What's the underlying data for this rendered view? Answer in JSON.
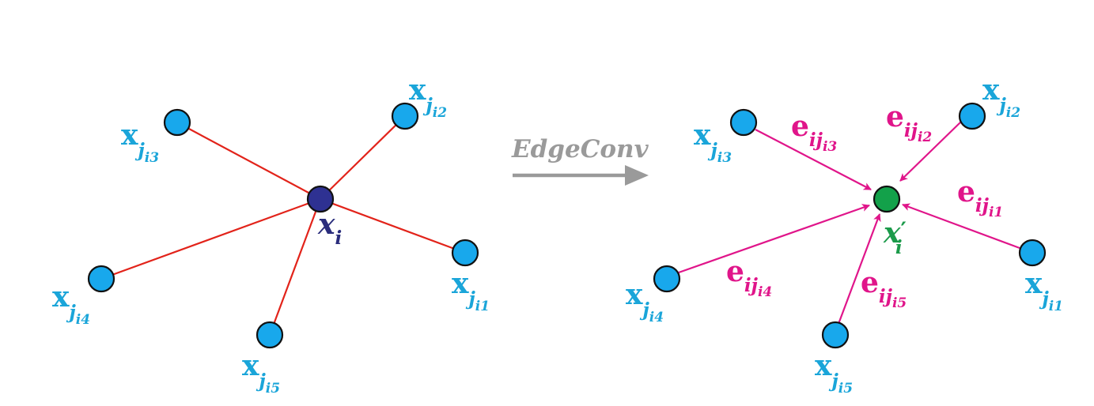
{
  "colors": {
    "neighbor_node": "#18a8ec",
    "center_node": "#2e3192",
    "output_node": "#13a14a",
    "input_edge": "#e2231a",
    "output_edge": "#e0158a",
    "neighbor_label": "#1aa5d9",
    "edge_label": "#e0158a",
    "center_label": "#2a2d7c",
    "output_label": "#1b9a4a",
    "arrow": "#9a9a9a"
  },
  "transform": {
    "label": "EdgeConv"
  },
  "left_graph": {
    "center": {
      "base": "x",
      "sub": "i"
    },
    "neighbors": [
      {
        "id": "j1",
        "base": "x",
        "sub": "j",
        "subsub": "i1"
      },
      {
        "id": "j2",
        "base": "x",
        "sub": "j",
        "subsub": "i2"
      },
      {
        "id": "j3",
        "base": "x",
        "sub": "j",
        "subsub": "i3"
      },
      {
        "id": "j4",
        "base": "x",
        "sub": "j",
        "subsub": "i4"
      },
      {
        "id": "j5",
        "base": "x",
        "sub": "j",
        "subsub": "i5"
      }
    ]
  },
  "right_graph": {
    "center": {
      "base": "x",
      "prime": "′",
      "sub": "i"
    },
    "neighbors": [
      {
        "id": "j1",
        "base": "x",
        "sub": "j",
        "subsub": "i1"
      },
      {
        "id": "j2",
        "base": "x",
        "sub": "j",
        "subsub": "i2"
      },
      {
        "id": "j3",
        "base": "x",
        "sub": "j",
        "subsub": "i3"
      },
      {
        "id": "j4",
        "base": "x",
        "sub": "j",
        "subsub": "i4"
      },
      {
        "id": "j5",
        "base": "x",
        "sub": "j",
        "subsub": "i5"
      }
    ],
    "edges": [
      {
        "id": "e1",
        "base": "e",
        "sub": "ij",
        "subsub": "i1"
      },
      {
        "id": "e2",
        "base": "e",
        "sub": "ij",
        "subsub": "i2"
      },
      {
        "id": "e3",
        "base": "e",
        "sub": "ij",
        "subsub": "i3"
      },
      {
        "id": "e4",
        "base": "e",
        "sub": "ij",
        "subsub": "i4"
      },
      {
        "id": "e5",
        "base": "e",
        "sub": "ij",
        "subsub": "i5"
      }
    ]
  }
}
